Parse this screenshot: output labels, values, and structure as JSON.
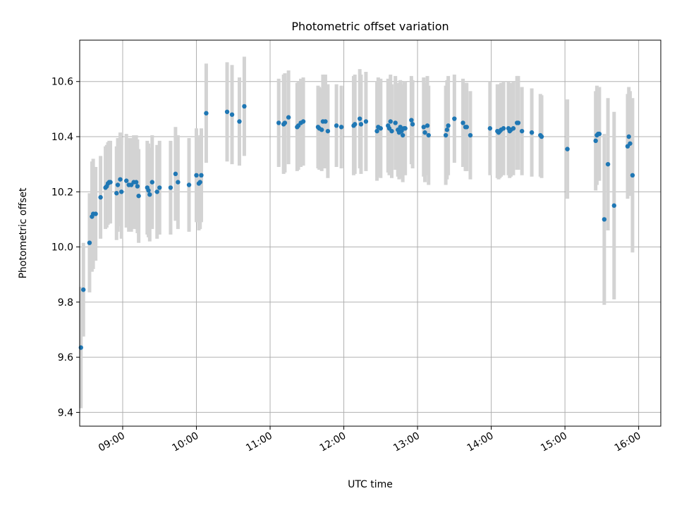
{
  "colors": {
    "point": "#1f77b4",
    "errorbar": "#d3d3d3",
    "grid": "#b0b0b0",
    "axis": "#000000",
    "background": "#ffffff"
  },
  "chart_data": {
    "type": "scatter",
    "title": "Photometric offset variation",
    "xlabel": "UTC time",
    "ylabel": "Photometric offset",
    "grid": true,
    "xlim": [
      "08:25",
      "16:18"
    ],
    "ylim": [
      9.35,
      10.75
    ],
    "x_ticks": [
      "09:00",
      "10:00",
      "11:00",
      "12:00",
      "13:00",
      "14:00",
      "15:00",
      "16:00"
    ],
    "y_ticks": [
      9.4,
      9.6,
      9.8,
      10.0,
      10.2,
      10.4,
      10.6
    ],
    "y_tick_labels": [
      "9.4",
      "9.6",
      "9.8",
      "10.0",
      "10.2",
      "10.4",
      "10.6"
    ],
    "series": [
      {
        "marker": "dot",
        "error_bars": "vertical, light gray",
        "points": [
          [
            "08:26",
            9.635,
            0.22
          ],
          [
            "08:28",
            9.845,
            0.17
          ],
          [
            "08:33",
            10.015,
            0.18
          ],
          [
            "08:35",
            10.11,
            0.2
          ],
          [
            "08:36",
            10.12,
            0.2
          ],
          [
            "08:38",
            10.12,
            0.17
          ],
          [
            "08:42",
            10.18,
            0.15
          ],
          [
            "08:46",
            10.215,
            0.15
          ],
          [
            "08:47",
            10.22,
            0.15
          ],
          [
            "08:48",
            10.23,
            0.15
          ],
          [
            "08:49",
            10.235,
            0.15
          ],
          [
            "08:50",
            10.235,
            0.15
          ],
          [
            "08:55",
            10.195,
            0.17
          ],
          [
            "08:56",
            10.225,
            0.17
          ],
          [
            "08:58",
            10.245,
            0.17
          ],
          [
            "08:59",
            10.2,
            0.17
          ],
          [
            "09:03",
            10.24,
            0.17
          ],
          [
            "09:05",
            10.225,
            0.17
          ],
          [
            "09:07",
            10.225,
            0.17
          ],
          [
            "09:09",
            10.235,
            0.17
          ],
          [
            "09:11",
            10.235,
            0.17
          ],
          [
            "09:12",
            10.22,
            0.17
          ],
          [
            "09:13",
            10.185,
            0.17
          ],
          [
            "09:20",
            10.215,
            0.17
          ],
          [
            "09:21",
            10.205,
            0.17
          ],
          [
            "09:22",
            10.19,
            0.17
          ],
          [
            "09:24",
            10.235,
            0.17
          ],
          [
            "09:28",
            10.2,
            0.17
          ],
          [
            "09:30",
            10.215,
            0.17
          ],
          [
            "09:39",
            10.215,
            0.17
          ],
          [
            "09:43",
            10.265,
            0.17
          ],
          [
            "09:45",
            10.235,
            0.17
          ],
          [
            "09:54",
            10.225,
            0.17
          ],
          [
            "10:00",
            10.26,
            0.17
          ],
          [
            "10:02",
            10.23,
            0.17
          ],
          [
            "10:03",
            10.235,
            0.17
          ],
          [
            "10:04",
            10.26,
            0.17
          ],
          [
            "10:08",
            10.485,
            0.18
          ],
          [
            "10:25",
            10.49,
            0.18
          ],
          [
            "10:29",
            10.48,
            0.18
          ],
          [
            "10:35",
            10.455,
            0.16
          ],
          [
            "10:39",
            10.51,
            0.18
          ],
          [
            "11:07",
            10.45,
            0.16
          ],
          [
            "11:11",
            10.445,
            0.18
          ],
          [
            "11:12",
            10.45,
            0.18
          ],
          [
            "11:15",
            10.47,
            0.17
          ],
          [
            "11:22",
            10.435,
            0.16
          ],
          [
            "11:23",
            10.44,
            0.16
          ],
          [
            "11:25",
            10.45,
            0.16
          ],
          [
            "11:27",
            10.455,
            0.16
          ],
          [
            "11:39",
            10.435,
            0.15
          ],
          [
            "11:40",
            10.43,
            0.15
          ],
          [
            "11:42",
            10.425,
            0.15
          ],
          [
            "11:43",
            10.455,
            0.17
          ],
          [
            "11:45",
            10.455,
            0.17
          ],
          [
            "11:47",
            10.42,
            0.17
          ],
          [
            "11:54",
            10.44,
            0.15
          ],
          [
            "11:58",
            10.435,
            0.15
          ],
          [
            "12:08",
            10.44,
            0.18
          ],
          [
            "12:09",
            10.445,
            0.18
          ],
          [
            "12:13",
            10.465,
            0.18
          ],
          [
            "12:14",
            10.445,
            0.18
          ],
          [
            "12:18",
            10.455,
            0.18
          ],
          [
            "12:27",
            10.42,
            0.18
          ],
          [
            "12:28",
            10.435,
            0.18
          ],
          [
            "12:30",
            10.43,
            0.18
          ],
          [
            "12:36",
            10.44,
            0.17
          ],
          [
            "12:37",
            10.43,
            0.17
          ],
          [
            "12:38",
            10.455,
            0.17
          ],
          [
            "12:39",
            10.42,
            0.17
          ],
          [
            "12:42",
            10.45,
            0.17
          ],
          [
            "12:44",
            10.425,
            0.17
          ],
          [
            "12:45",
            10.415,
            0.17
          ],
          [
            "12:46",
            10.435,
            0.17
          ],
          [
            "12:47",
            10.42,
            0.17
          ],
          [
            "12:48",
            10.405,
            0.17
          ],
          [
            "12:49",
            10.43,
            0.17
          ],
          [
            "12:50",
            10.43,
            0.17
          ],
          [
            "12:55",
            10.46,
            0.16
          ],
          [
            "12:56",
            10.445,
            0.16
          ],
          [
            "13:05",
            10.435,
            0.18
          ],
          [
            "13:06",
            10.415,
            0.18
          ],
          [
            "13:08",
            10.44,
            0.18
          ],
          [
            "13:09",
            10.405,
            0.18
          ],
          [
            "13:23",
            10.405,
            0.18
          ],
          [
            "13:24",
            10.425,
            0.18
          ],
          [
            "13:25",
            10.44,
            0.18
          ],
          [
            "13:30",
            10.465,
            0.16
          ],
          [
            "13:37",
            10.45,
            0.16
          ],
          [
            "13:39",
            10.435,
            0.16
          ],
          [
            "13:40",
            10.435,
            0.16
          ],
          [
            "13:43",
            10.405,
            0.16
          ],
          [
            "13:59",
            10.43,
            0.17
          ],
          [
            "14:05",
            10.42,
            0.17
          ],
          [
            "14:06",
            10.415,
            0.17
          ],
          [
            "14:07",
            10.42,
            0.17
          ],
          [
            "14:08",
            10.425,
            0.17
          ],
          [
            "14:10",
            10.43,
            0.17
          ],
          [
            "14:14",
            10.43,
            0.17
          ],
          [
            "14:15",
            10.42,
            0.17
          ],
          [
            "14:16",
            10.425,
            0.17
          ],
          [
            "14:18",
            10.43,
            0.17
          ],
          [
            "14:21",
            10.45,
            0.17
          ],
          [
            "14:22",
            10.45,
            0.17
          ],
          [
            "14:25",
            10.42,
            0.16
          ],
          [
            "14:33",
            10.415,
            0.16
          ],
          [
            "14:40",
            10.405,
            0.15
          ],
          [
            "14:41",
            10.4,
            0.15
          ],
          [
            "15:02",
            10.355,
            0.18
          ],
          [
            "15:25",
            10.385,
            0.18
          ],
          [
            "15:26",
            10.405,
            0.18
          ],
          [
            "15:27",
            10.41,
            0.17
          ],
          [
            "15:28",
            10.41,
            0.17
          ],
          [
            "15:32",
            10.1,
            0.31
          ],
          [
            "15:35",
            10.3,
            0.24
          ],
          [
            "15:40",
            10.15,
            0.34
          ],
          [
            "15:51",
            10.365,
            0.19
          ],
          [
            "15:52",
            10.4,
            0.18
          ],
          [
            "15:53",
            10.375,
            0.19
          ],
          [
            "15:55",
            10.26,
            0.28
          ]
        ]
      }
    ]
  }
}
